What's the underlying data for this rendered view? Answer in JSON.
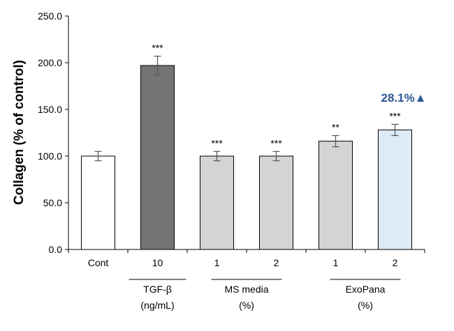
{
  "chart_data": {
    "type": "bar",
    "ylabel": "Collagen (% of control)",
    "ylim": [
      0,
      250
    ],
    "yticks": [
      "0.0",
      "50.0",
      "100.0",
      "150.0",
      "200.0",
      "250.0"
    ],
    "categories": [
      "Cont",
      "10",
      "1",
      "2",
      "1",
      "2"
    ],
    "values": [
      100,
      197,
      100,
      100,
      116,
      128
    ],
    "errors": [
      5,
      10,
      5,
      5,
      6,
      6
    ],
    "significance": [
      "",
      "***",
      "***",
      "***",
      "**",
      "***"
    ],
    "bar_colors": [
      "#ffffff",
      "#747474",
      "#d4d4d4",
      "#d4d4d4",
      "#d4d4d4",
      "#ddeaf7"
    ],
    "groups": [
      {
        "line1": "TGF-β",
        "line2": "(ng/mL)"
      },
      {
        "line1": "MS media",
        "line2": "(%)"
      },
      {
        "line1": "ExoPana",
        "line2": "(%)"
      }
    ],
    "annotation": {
      "text": "28.1%▲",
      "color": "#2e5597"
    },
    "grid": false,
    "legend": "none"
  }
}
